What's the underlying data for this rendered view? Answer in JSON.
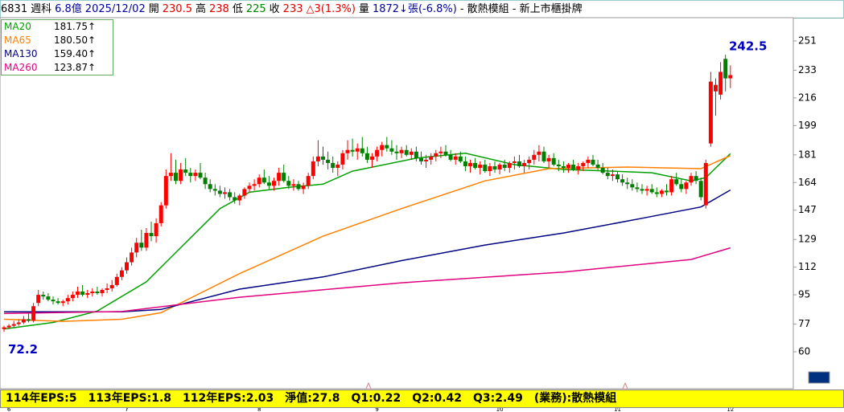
{
  "header": {
    "items": [
      "6831",
      "週科",
      "6.8億",
      "2025/12/02",
      "開",
      "230.5",
      "高",
      "238",
      "低",
      "225",
      "收",
      "233",
      "△3(1.3%)",
      "量",
      "1872↓張(-6.8%)",
      "- 散熱模組 - 新上市櫃掛牌"
    ]
  },
  "footer": {
    "items": [
      "114年EPS:5",
      "113年EPS:1.8",
      "112年EPS:2.03",
      "淨值:27.8",
      "Q1:0.22",
      "Q2:0.42",
      "Q3:2.49",
      "(業務):散熱模組"
    ]
  },
  "chart_data": {
    "type": "candlestick",
    "up_color": "#ff0000",
    "down_color": "#008000",
    "ylim": [
      36.8,
      265.3
    ],
    "yticks": [
      60,
      77,
      95,
      112,
      129,
      147,
      164,
      181,
      199,
      216,
      233,
      251
    ],
    "month_ticks": [
      {
        "value": 1,
        "label": "6"
      },
      {
        "value": 25,
        "label": "7"
      },
      {
        "value": 52,
        "label": "8"
      },
      {
        "value": 76,
        "label": "9"
      },
      {
        "value": 101,
        "label": "10"
      },
      {
        "value": 125,
        "label": "11"
      },
      {
        "value": 148,
        "label": "12"
      }
    ],
    "candles": [
      [
        74,
        76,
        72.2,
        75
      ],
      [
        75,
        77,
        74,
        76
      ],
      [
        76,
        79,
        75,
        77
      ],
      [
        77,
        80,
        76,
        78
      ],
      [
        78,
        82,
        77,
        80
      ],
      [
        80,
        84,
        78,
        79
      ],
      [
        79,
        90,
        78,
        88
      ],
      [
        90,
        98,
        88,
        95
      ],
      [
        95,
        97,
        92,
        94
      ],
      [
        94,
        96,
        91,
        92
      ],
      [
        92,
        94,
        89,
        91
      ],
      [
        91,
        93,
        89,
        90
      ],
      [
        90,
        92,
        88,
        91
      ],
      [
        91,
        95,
        89,
        93
      ],
      [
        93,
        97,
        91,
        95
      ],
      [
        95,
        100,
        93,
        97
      ],
      [
        97,
        101,
        94,
        95
      ],
      [
        95,
        98,
        93,
        96
      ],
      [
        96,
        99,
        94,
        97
      ],
      [
        97,
        100,
        95,
        96
      ],
      [
        96,
        99,
        94,
        98
      ],
      [
        98,
        102,
        96,
        99
      ],
      [
        99,
        104,
        97,
        101
      ],
      [
        101,
        108,
        100,
        106
      ],
      [
        106,
        112,
        104,
        110
      ],
      [
        110,
        118,
        108,
        115
      ],
      [
        115,
        124,
        113,
        121
      ],
      [
        121,
        130,
        118,
        127
      ],
      [
        127,
        135,
        122,
        124
      ],
      [
        124,
        136,
        122,
        133
      ],
      [
        133,
        140,
        128,
        131
      ],
      [
        131,
        142,
        127,
        139
      ],
      [
        139,
        152,
        137,
        150
      ],
      [
        150,
        172,
        148,
        168
      ],
      [
        168,
        182,
        165,
        170
      ],
      [
        170,
        178,
        163,
        165
      ],
      [
        165,
        176,
        163,
        172
      ],
      [
        172,
        179,
        168,
        170
      ],
      [
        170,
        173,
        164,
        168
      ],
      [
        168,
        172,
        165,
        170
      ],
      [
        170,
        176,
        166,
        167
      ],
      [
        167,
        170,
        160,
        163
      ],
      [
        163,
        166,
        158,
        160
      ],
      [
        160,
        163,
        156,
        159
      ],
      [
        159,
        162,
        155,
        157
      ],
      [
        157,
        161,
        154,
        158
      ],
      [
        158,
        160,
        153,
        155
      ],
      [
        155,
        158,
        151,
        153
      ],
      [
        153,
        157,
        150,
        156
      ],
      [
        156,
        161,
        154,
        160
      ],
      [
        160,
        164,
        158,
        162
      ],
      [
        162,
        166,
        159,
        163
      ],
      [
        163,
        169,
        161,
        167
      ],
      [
        167,
        172,
        163,
        164
      ],
      [
        164,
        168,
        160,
        162
      ],
      [
        162,
        167,
        159,
        165
      ],
      [
        165,
        173,
        162,
        170
      ],
      [
        170,
        175,
        164,
        165
      ],
      [
        165,
        168,
        160,
        162
      ],
      [
        162,
        166,
        159,
        163
      ],
      [
        163,
        165,
        159,
        160
      ],
      [
        160,
        164,
        157,
        162
      ],
      [
        162,
        170,
        160,
        168
      ],
      [
        168,
        180,
        166,
        177
      ],
      [
        177,
        190,
        174,
        180
      ],
      [
        180,
        186,
        175,
        178
      ],
      [
        178,
        183,
        172,
        176
      ],
      [
        176,
        180,
        170,
        173
      ],
      [
        173,
        177,
        168,
        175
      ],
      [
        175,
        184,
        172,
        182
      ],
      [
        182,
        190,
        178,
        184
      ],
      [
        184,
        191,
        180,
        183
      ],
      [
        183,
        188,
        178,
        185
      ],
      [
        185,
        192,
        180,
        182
      ],
      [
        182,
        186,
        176,
        178
      ],
      [
        178,
        182,
        173,
        180
      ],
      [
        180,
        186,
        177,
        184
      ],
      [
        184,
        189,
        180,
        187
      ],
      [
        187,
        192,
        183,
        185
      ],
      [
        185,
        190,
        181,
        183
      ],
      [
        183,
        187,
        178,
        182
      ],
      [
        182,
        186,
        179,
        184
      ],
      [
        184,
        187,
        180,
        181
      ],
      [
        181,
        185,
        178,
        183
      ],
      [
        183,
        186,
        177,
        179
      ],
      [
        179,
        183,
        175,
        177
      ],
      [
        177,
        181,
        173,
        178
      ],
      [
        178,
        182,
        175,
        180
      ],
      [
        180,
        184,
        177,
        182
      ],
      [
        182,
        186,
        179,
        183
      ],
      [
        183,
        187,
        180,
        181
      ],
      [
        181,
        184,
        177,
        178
      ],
      [
        178,
        182,
        175,
        180
      ],
      [
        180,
        183,
        176,
        177
      ],
      [
        177,
        180,
        171,
        174
      ],
      [
        174,
        178,
        170,
        176
      ],
      [
        176,
        179,
        172,
        173
      ],
      [
        173,
        177,
        169,
        175
      ],
      [
        175,
        178,
        170,
        171
      ],
      [
        171,
        176,
        168,
        174
      ],
      [
        174,
        177,
        170,
        172
      ],
      [
        172,
        176,
        169,
        175
      ],
      [
        175,
        178,
        171,
        173
      ],
      [
        173,
        177,
        170,
        176
      ],
      [
        176,
        180,
        172,
        177
      ],
      [
        177,
        181,
        173,
        174
      ],
      [
        174,
        178,
        170,
        176
      ],
      [
        176,
        180,
        172,
        178
      ],
      [
        178,
        184,
        175,
        181
      ],
      [
        181,
        187,
        177,
        183
      ],
      [
        183,
        186,
        176,
        177
      ],
      [
        177,
        181,
        173,
        179
      ],
      [
        179,
        182,
        174,
        175
      ],
      [
        175,
        178,
        171,
        174
      ],
      [
        174,
        177,
        170,
        173
      ],
      [
        173,
        176,
        170,
        175
      ],
      [
        175,
        178,
        171,
        172
      ],
      [
        172,
        176,
        169,
        174
      ],
      [
        174,
        177,
        171,
        176
      ],
      [
        176,
        180,
        173,
        178
      ],
      [
        178,
        181,
        174,
        175
      ],
      [
        175,
        178,
        171,
        173
      ],
      [
        173,
        176,
        169,
        170
      ],
      [
        170,
        173,
        166,
        168
      ],
      [
        168,
        172,
        165,
        169
      ],
      [
        169,
        171,
        164,
        166
      ],
      [
        166,
        169,
        162,
        164
      ],
      [
        164,
        167,
        160,
        163
      ],
      [
        163,
        166,
        159,
        161
      ],
      [
        161,
        164,
        158,
        160
      ],
      [
        160,
        163,
        157,
        159
      ],
      [
        159,
        162,
        156,
        160
      ],
      [
        160,
        163,
        157,
        158
      ],
      [
        158,
        161,
        155,
        157
      ],
      [
        157,
        160,
        155,
        159
      ],
      [
        159,
        163,
        156,
        158
      ],
      [
        158,
        168,
        156,
        166
      ],
      [
        166,
        170,
        162,
        163
      ],
      [
        163,
        166,
        158,
        160
      ],
      [
        160,
        165,
        157,
        164
      ],
      [
        164,
        170,
        162,
        168
      ],
      [
        168,
        171,
        163,
        165
      ],
      [
        165,
        167,
        153,
        155
      ],
      [
        150,
        178,
        148,
        176
      ],
      [
        188,
        232,
        186,
        226
      ],
      [
        220,
        228,
        205,
        224
      ],
      [
        218,
        238,
        215,
        232
      ],
      [
        240,
        242.5,
        220,
        228
      ],
      [
        228,
        236,
        222,
        230
      ]
    ],
    "series": [
      {
        "name": "MA20",
        "color": "#00a000",
        "x": [
          0,
          10,
          19,
          29,
          34,
          44,
          50,
          58,
          65,
          71,
          84,
          94,
          104,
          114,
          124,
          132,
          140,
          143,
          148
        ],
        "values": [
          74,
          78,
          85,
          103,
          118,
          148,
          158,
          161,
          163,
          171,
          179,
          182,
          175,
          172,
          171,
          170,
          165,
          167,
          181.75
        ],
        "value_labels": [
          null,
          null,
          null,
          null,
          null,
          null,
          null,
          null,
          null,
          null,
          null,
          null,
          null,
          null,
          null,
          null,
          null,
          null,
          "181.75↑"
        ]
      },
      {
        "name": "MA65",
        "color": "#ff8000",
        "x": [
          0,
          12,
          24,
          32,
          48,
          65,
          81,
          98,
          111,
          127,
          142,
          148
        ],
        "values": [
          80,
          78.7,
          80,
          84,
          108,
          131,
          148,
          165,
          172.5,
          173.5,
          172.5,
          180.5
        ],
        "value_labels": [
          null,
          null,
          null,
          null,
          null,
          null,
          null,
          null,
          null,
          null,
          null,
          "180.50↑"
        ]
      },
      {
        "name": "MA130",
        "color": "#000080",
        "x": [
          0,
          24,
          32,
          48,
          65,
          81,
          98,
          114,
          130,
          142,
          148
        ],
        "values": [
          84.5,
          84.5,
          86,
          98.5,
          106,
          116,
          125.6,
          133,
          142,
          149,
          159.4
        ],
        "value_labels": [
          null,
          null,
          null,
          null,
          null,
          null,
          null,
          null,
          null,
          null,
          "159.40↑"
        ]
      },
      {
        "name": "MA260",
        "color": "#e0007f",
        "x": [
          0,
          24,
          48,
          81,
          114,
          140,
          148
        ],
        "values": [
          83.5,
          84.7,
          93.5,
          102.4,
          109,
          116.7,
          123.87
        ],
        "value_labels": [
          null,
          null,
          null,
          null,
          null,
          null,
          "123.87↑"
        ]
      }
    ]
  }
}
